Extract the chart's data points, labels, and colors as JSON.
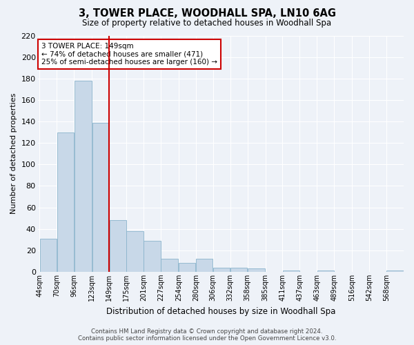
{
  "title": "3, TOWER PLACE, WOODHALL SPA, LN10 6AG",
  "subtitle": "Size of property relative to detached houses in Woodhall Spa",
  "xlabel": "Distribution of detached houses by size in Woodhall Spa",
  "ylabel": "Number of detached properties",
  "bar_values": [
    31,
    130,
    178,
    139,
    48,
    38,
    29,
    12,
    8,
    12,
    4,
    4,
    3,
    0,
    1,
    0,
    1,
    0,
    0,
    0,
    1
  ],
  "bin_labels": [
    "44sqm",
    "70sqm",
    "96sqm",
    "123sqm",
    "149sqm",
    "175sqm",
    "201sqm",
    "227sqm",
    "254sqm",
    "280sqm",
    "306sqm",
    "332sqm",
    "358sqm",
    "385sqm",
    "411sqm",
    "437sqm",
    "463sqm",
    "489sqm",
    "516sqm",
    "542sqm",
    "568sqm"
  ],
  "bin_edges": [
    44,
    70,
    96,
    123,
    149,
    175,
    201,
    227,
    254,
    280,
    306,
    332,
    358,
    385,
    411,
    437,
    463,
    489,
    516,
    542,
    568
  ],
  "bar_color": "#c8d8e8",
  "bar_edge_color": "#8ab4cc",
  "vline_x": 149,
  "vline_color": "#cc0000",
  "annotation_line1": "3 TOWER PLACE: 149sqm",
  "annotation_line2": "← 74% of detached houses are smaller (471)",
  "annotation_line3": "25% of semi-detached houses are larger (160) →",
  "annotation_box_color": "#cc0000",
  "ylim": [
    0,
    220
  ],
  "yticks": [
    0,
    20,
    40,
    60,
    80,
    100,
    120,
    140,
    160,
    180,
    200,
    220
  ],
  "background_color": "#eef2f8",
  "grid_color": "#ffffff",
  "footer_line1": "Contains HM Land Registry data © Crown copyright and database right 2024.",
  "footer_line2": "Contains public sector information licensed under the Open Government Licence v3.0."
}
